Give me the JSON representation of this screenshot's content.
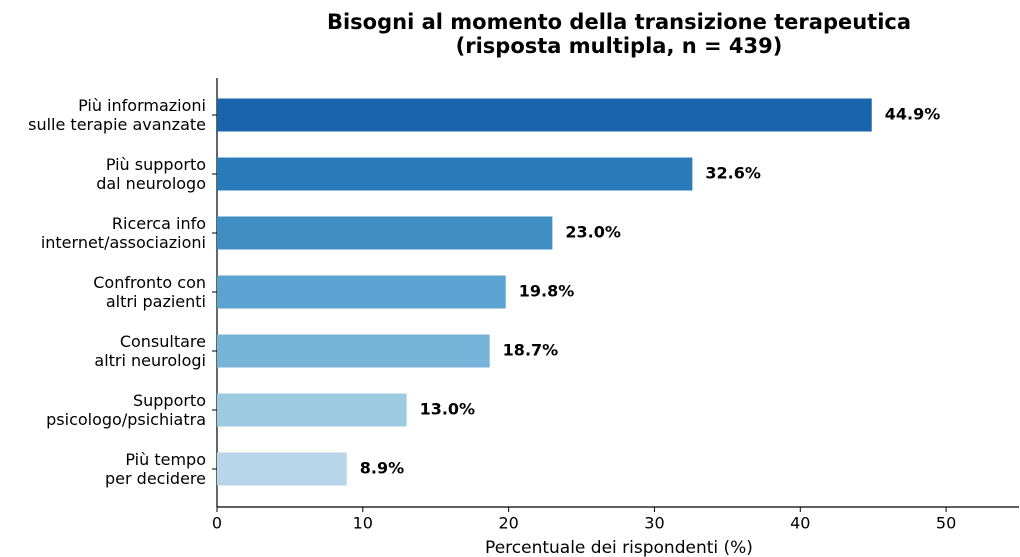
{
  "chart_data": {
    "type": "barh",
    "title": "Bisogni al momento della transizione terapeutica\n(risposta multipla, n = 439)",
    "xlabel": "Percentuale dei rispondenti (%)",
    "categories": [
      "Più informazioni\nsulle terapie avanzate",
      "Più supporto\ndal neurologo",
      "Ricerca info\ninternet/associazioni",
      "Confronto con\naltri pazienti",
      "Consultare\naltri neurologi",
      "Supporto\npsicologo/psichiatra",
      "Più tempo\nper decidere"
    ],
    "values": [
      44.9,
      32.6,
      23.0,
      19.8,
      18.7,
      13.0,
      8.9
    ],
    "value_labels": [
      "44.9%",
      "32.6%",
      "23.0%",
      "19.8%",
      "18.7%",
      "13.0%",
      "8.9%"
    ],
    "colors": [
      "#1865ab",
      "#2b7bba",
      "#3f8fc5",
      "#5ba3d0",
      "#77b3d8",
      "#9ccae1",
      "#b8d5ea"
    ],
    "xlim": [
      0,
      55
    ],
    "xticks": [
      0,
      10,
      20,
      30,
      40,
      50
    ],
    "grid": false
  }
}
